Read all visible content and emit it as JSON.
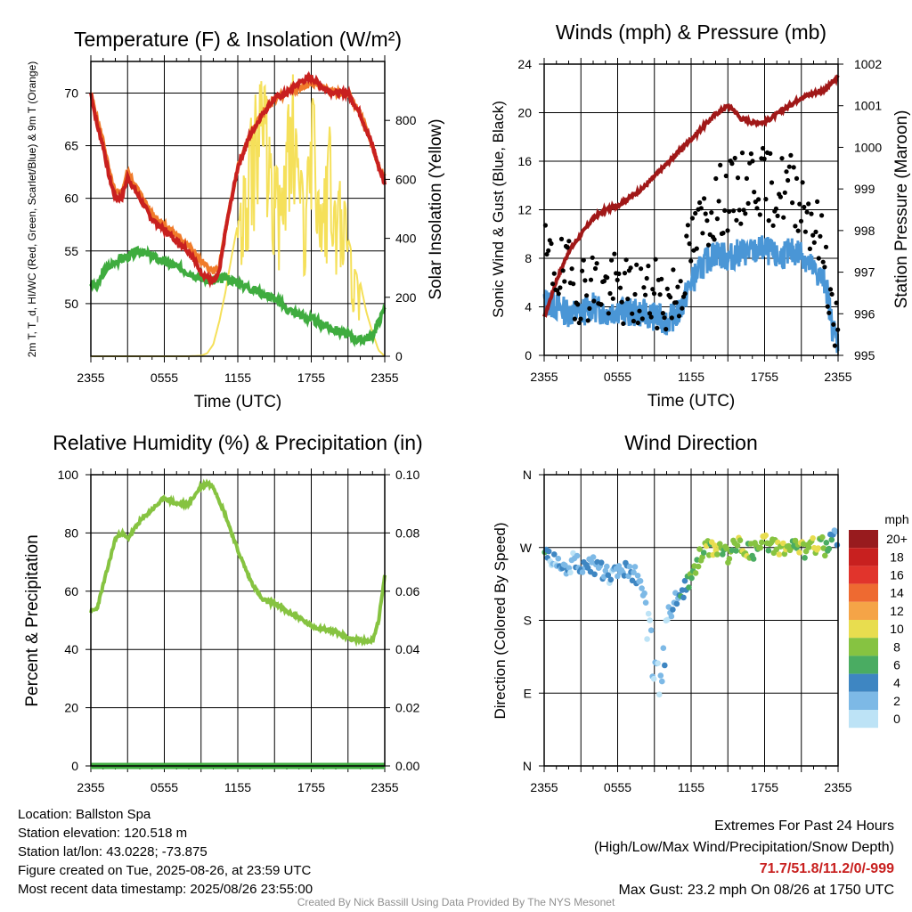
{
  "colors": {
    "temp": "#c8201f",
    "heat_index": "#c8201f",
    "temp_9m": "#f07b2b",
    "dewpoint": "#3fac3f",
    "insolation": "#f5e05a",
    "wind": "#4a96d6",
    "gust": "#000000",
    "pressure": "#a01818",
    "humidity": "#86c341",
    "precip": "#3fac3f"
  },
  "chart_data": [
    {
      "type": "line",
      "title": "Temperature (F) & Insolation (W/m²)",
      "xlabel": "Time (UTC)",
      "ylabel": "2m T, T_d, HI/WC (Red, Green, Scarlet/Blue) & 9m T (Orange)",
      "ylabel_right": "Solar Insolation (Yellow)",
      "x_ticks": [
        "2355",
        "0555",
        "1155",
        "1755",
        "2355"
      ],
      "x_range_hours": [
        0,
        24
      ],
      "ylim": [
        45,
        73
      ],
      "y_ticks": [
        50,
        55,
        60,
        65,
        70
      ],
      "ylim_right": [
        0,
        1000
      ],
      "y_ticks_right": [
        0,
        200,
        400,
        600,
        800
      ],
      "grid": true,
      "series": [
        {
          "name": "2m T",
          "axis": "left",
          "x": [
            0,
            0.5,
            1,
            1.5,
            2,
            2.5,
            3,
            3.5,
            4,
            5,
            6,
            7,
            8,
            9,
            9.5,
            10,
            10.5,
            11,
            11.5,
            12,
            13,
            14,
            15,
            16,
            17,
            18,
            19,
            20,
            21,
            22,
            23,
            23.5,
            24
          ],
          "values": [
            70,
            67,
            65,
            62,
            60,
            60,
            62,
            61,
            60,
            58,
            57,
            56,
            55,
            53,
            52.5,
            52,
            53,
            57,
            60,
            63,
            66,
            68,
            69.5,
            70,
            71,
            71.5,
            70.5,
            70,
            70,
            68,
            65,
            63,
            61.5
          ]
        },
        {
          "name": "9m T",
          "axis": "left",
          "x": [
            0,
            0.5,
            1,
            1.5,
            2,
            2.5,
            3,
            3.5,
            4,
            5,
            6,
            7,
            8,
            9,
            9.5,
            10,
            10.5,
            11,
            11.5,
            12,
            13,
            14,
            15,
            16,
            17,
            18,
            19,
            20,
            21,
            22,
            23,
            23.5,
            24
          ],
          "values": [
            70,
            67.5,
            65.5,
            62.5,
            60.5,
            60.5,
            62.5,
            61.5,
            60.5,
            58.5,
            57.5,
            56.5,
            55.5,
            54,
            53.5,
            53,
            53.5,
            57,
            60,
            63,
            66,
            68,
            69.5,
            70,
            70.5,
            71,
            70.5,
            70,
            70,
            68,
            65,
            63,
            62
          ]
        },
        {
          "name": "Dewpoint",
          "axis": "left",
          "x": [
            0,
            0.5,
            1,
            2,
            3,
            4,
            5,
            6,
            7,
            8,
            9,
            10,
            11,
            12,
            13,
            14,
            15,
            16,
            17,
            18,
            19,
            20,
            21,
            22,
            23,
            24
          ],
          "values": [
            52,
            51.5,
            53,
            54,
            54.5,
            55,
            54.5,
            54,
            53.5,
            53,
            52.5,
            52,
            52.5,
            52,
            51.5,
            51,
            50.5,
            49.5,
            49,
            48.5,
            48,
            47.5,
            47,
            46.5,
            47,
            49.5
          ]
        },
        {
          "name": "Solar Insolation",
          "axis": "right",
          "x": [
            0,
            8,
            9,
            9.5,
            10,
            10.5,
            11,
            11.5,
            12,
            12.5,
            13,
            13.5,
            14,
            14.5,
            15,
            15.5,
            16,
            16.5,
            17,
            17.5,
            18,
            18.5,
            19,
            19.5,
            20,
            20.5,
            21,
            21.5,
            22,
            22.5,
            23,
            23.5,
            24
          ],
          "values": [
            0,
            0,
            2,
            10,
            40,
            120,
            220,
            340,
            450,
            620,
            800,
            900,
            980,
            850,
            700,
            580,
            820,
            960,
            700,
            520,
            900,
            820,
            600,
            780,
            500,
            640,
            420,
            300,
            250,
            150,
            80,
            20,
            0
          ]
        }
      ]
    },
    {
      "type": "line",
      "title": "Winds (mph) & Pressure (mb)",
      "xlabel": "Time (UTC)",
      "ylabel": "Sonic Wind & Gust (Blue, Black)",
      "ylabel_right": "Station Pressure (Maroon)",
      "x_ticks": [
        "2355",
        "0555",
        "1155",
        "1755",
        "2355"
      ],
      "x_range_hours": [
        0,
        24
      ],
      "ylim": [
        0,
        24
      ],
      "y_ticks": [
        0,
        4,
        8,
        12,
        16,
        20,
        24
      ],
      "ylim_right": [
        995,
        1002
      ],
      "y_ticks_right": [
        995,
        996,
        997,
        998,
        999,
        1000,
        1001,
        1002
      ],
      "grid": true,
      "series": [
        {
          "name": "Sonic Wind",
          "axis": "left",
          "x": [
            0,
            1,
            2,
            3,
            4,
            5,
            6,
            7,
            8,
            9,
            10,
            11,
            12,
            13,
            14,
            15,
            16,
            17,
            18,
            19,
            20,
            21,
            22,
            23,
            23.5,
            24
          ],
          "values": [
            4.5,
            4,
            3.5,
            3.5,
            4,
            3.5,
            3.8,
            3.5,
            3.5,
            3.2,
            2.8,
            3.5,
            6,
            7.5,
            8.5,
            8,
            8.5,
            8.5,
            8.8,
            8,
            8.5,
            8.5,
            7,
            6,
            2.5,
            1
          ]
        },
        {
          "name": "Gust",
          "axis": "left",
          "x": [
            0,
            1,
            2,
            3,
            4,
            5,
            6,
            7,
            8,
            9,
            10,
            11,
            12,
            13,
            14,
            15,
            16,
            17,
            18,
            19,
            20,
            21,
            22,
            23,
            23.5,
            24
          ],
          "values": [
            8,
            7,
            6.5,
            5.5,
            6,
            5.5,
            5.5,
            5,
            5,
            5,
            4.5,
            5.5,
            9,
            11,
            12.5,
            13,
            13.5,
            15,
            14,
            13.5,
            14,
            13,
            11,
            8,
            3.5,
            1.5
          ]
        },
        {
          "name": "Station Pressure",
          "axis": "right",
          "x": [
            0,
            1,
            2,
            3,
            4,
            5,
            6,
            7,
            8,
            9,
            10,
            11,
            12,
            13,
            14,
            15,
            15.5,
            16,
            17,
            18,
            19,
            20,
            21,
            22,
            23,
            24
          ],
          "values": [
            995.9,
            996.8,
            997.5,
            997.9,
            998.3,
            998.5,
            998.6,
            998.8,
            999.0,
            999.3,
            999.6,
            999.9,
            1000.2,
            1000.5,
            1000.8,
            1001.0,
            1000.9,
            1000.7,
            1000.6,
            1000.6,
            1000.8,
            1001.0,
            1001.2,
            1001.3,
            1001.4,
            1001.7
          ]
        }
      ]
    },
    {
      "type": "line",
      "title": "Relative Humidity (%) & Precipitation (in)",
      "ylabel": "Percent & Precipitation",
      "x_ticks": [
        "2355",
        "0555",
        "1155",
        "1755",
        "2355"
      ],
      "x_range_hours": [
        0,
        24
      ],
      "ylim": [
        0,
        100
      ],
      "y_ticks": [
        0,
        20,
        40,
        60,
        80,
        100
      ],
      "ylim_right": [
        0,
        0.1
      ],
      "y_ticks_right": [
        "0.00",
        "0.02",
        "0.04",
        "0.06",
        "0.08",
        "0.10"
      ],
      "grid": true,
      "series": [
        {
          "name": "Relative Humidity",
          "axis": "left",
          "x": [
            0,
            0.5,
            1,
            1.5,
            2,
            2.5,
            3,
            4,
            5,
            6,
            7,
            8,
            9,
            9.5,
            10,
            11,
            12,
            13,
            14,
            15,
            16,
            17,
            18,
            19,
            20,
            21,
            22,
            23,
            23.5,
            24
          ],
          "values": [
            53,
            54,
            62,
            70,
            78,
            80,
            78,
            84,
            88,
            92,
            90,
            90,
            96,
            97,
            96,
            86,
            74,
            64,
            57,
            56,
            53,
            51,
            48,
            47,
            46,
            44,
            43,
            43,
            50,
            65
          ]
        },
        {
          "name": "Precipitation",
          "axis": "right",
          "x": [
            0,
            24
          ],
          "values": [
            0,
            0
          ]
        }
      ]
    },
    {
      "type": "scatter",
      "title": "Wind Direction",
      "ylabel": "Direction (Colored By Speed)",
      "x_ticks": [
        "2355",
        "0555",
        "1155",
        "1755",
        "2355"
      ],
      "x_range_hours": [
        0,
        24
      ],
      "y_ticks": [
        "N",
        "E",
        "S",
        "W",
        "N"
      ],
      "ylim_degrees": [
        0,
        360
      ],
      "grid": true,
      "series": [
        {
          "name": "Wind Direction",
          "x": [
            0,
            0.5,
            1,
            1.5,
            2,
            2.5,
            3,
            3.5,
            4,
            4.5,
            5,
            5.5,
            6,
            6.5,
            7,
            7.5,
            8,
            8.5,
            9,
            9.5,
            10,
            10.5,
            11,
            11.5,
            12,
            12.5,
            13,
            13.5,
            14,
            14.5,
            15,
            15.5,
            16,
            16.5,
            17,
            17.5,
            18,
            18.5,
            19,
            19.5,
            20,
            20.5,
            21,
            21.5,
            22,
            22.5,
            23,
            23.5,
            24
          ],
          "values": [
            268,
            258,
            250,
            245,
            248,
            255,
            250,
            245,
            248,
            242,
            238,
            230,
            240,
            245,
            240,
            235,
            225,
            180,
            100,
            90,
            180,
            200,
            210,
            220,
            230,
            255,
            265,
            270,
            272,
            268,
            262,
            270,
            275,
            268,
            265,
            270,
            278,
            272,
            275,
            268,
            272,
            270,
            270,
            265,
            273,
            275,
            270,
            278,
            285
          ],
          "speeds": [
            4,
            2,
            2,
            3,
            2,
            2,
            3,
            3,
            2,
            3,
            2,
            2,
            2,
            3,
            2,
            2,
            2,
            1,
            1,
            1,
            2,
            3,
            4,
            5,
            6,
            7,
            8,
            8,
            9,
            7,
            8,
            7,
            9,
            8,
            8,
            6,
            9,
            7,
            10,
            8,
            9,
            7,
            10,
            7,
            9,
            8,
            6,
            4,
            2
          ]
        }
      ],
      "colorbar": {
        "title": "mph",
        "labels": [
          "20+",
          "18",
          "16",
          "14",
          "12",
          "10",
          "8",
          "6",
          "4",
          "2",
          "0"
        ],
        "colors": [
          "#981b1e",
          "#c8201f",
          "#e1342c",
          "#ee6a31",
          "#f5a447",
          "#e8dd4f",
          "#86c341",
          "#4aac62",
          "#3e86c2",
          "#7db9e6",
          "#bde3f6"
        ]
      }
    }
  ],
  "info_left": [
    "Location: Ballston Spa",
    "Station elevation: 120.518 m",
    "Station lat/lon: 43.0228; -73.875",
    "Figure created on Tue, 2025-08-26, at 23:59 UTC",
    "Most recent data timestamp: 2025/08/26 23:55:00"
  ],
  "info_right": {
    "title": "Extremes For Past 24 Hours",
    "subtitle": "(High/Low/Max Wind/Precipitation/Snow Depth)",
    "values": "71.7/51.8/11.2/0/-999",
    "max_gust": "Max Gust: 23.2 mph On 08/26 at 1750 UTC"
  },
  "credit": "Created By Nick Bassill Using Data Provided By The NYS Mesonet"
}
